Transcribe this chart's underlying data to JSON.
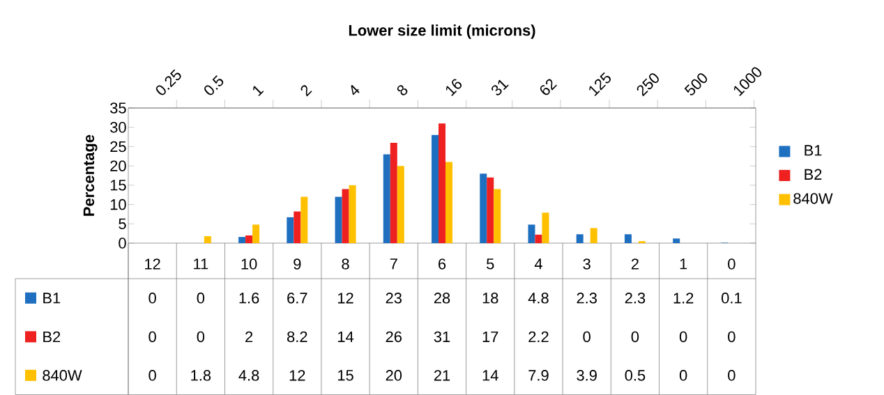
{
  "chart_data": {
    "type": "bar",
    "x2label": "Lower size limit (microns)",
    "ylabel": "Percentage",
    "categories": [
      "12",
      "11",
      "10",
      "9",
      "8",
      "7",
      "6",
      "5",
      "4",
      "3",
      "2",
      "1",
      "0"
    ],
    "series": [
      {
        "name": "B1",
        "color": "#1f6fc0",
        "values": [
          0,
          0,
          1.6,
          6.7,
          12,
          23,
          28,
          18,
          4.8,
          2.3,
          2.3,
          1.2,
          0.1
        ]
      },
      {
        "name": "B2",
        "color": "#ee2020",
        "values": [
          0,
          0,
          2,
          8.2,
          14,
          26,
          31,
          17,
          2.2,
          0,
          0,
          0,
          0
        ]
      },
      {
        "name": "840W",
        "color": "#ffc000",
        "values": [
          0,
          1.8,
          4.8,
          12,
          15,
          20,
          21,
          14,
          7.9,
          3.9,
          0.5,
          0,
          0
        ]
      }
    ],
    "ylim": [
      0,
      35
    ],
    "yticks": [
      0,
      5,
      10,
      15,
      20,
      25,
      30,
      35
    ],
    "x2lim": [
      0.125,
      1024
    ],
    "log": "x2",
    "x2ticks": [
      0.25,
      0.5,
      1,
      2,
      4,
      8,
      16,
      31,
      62,
      125,
      250,
      500,
      1000
    ],
    "data_labels": true,
    "legend": "right",
    "grid": false
  }
}
